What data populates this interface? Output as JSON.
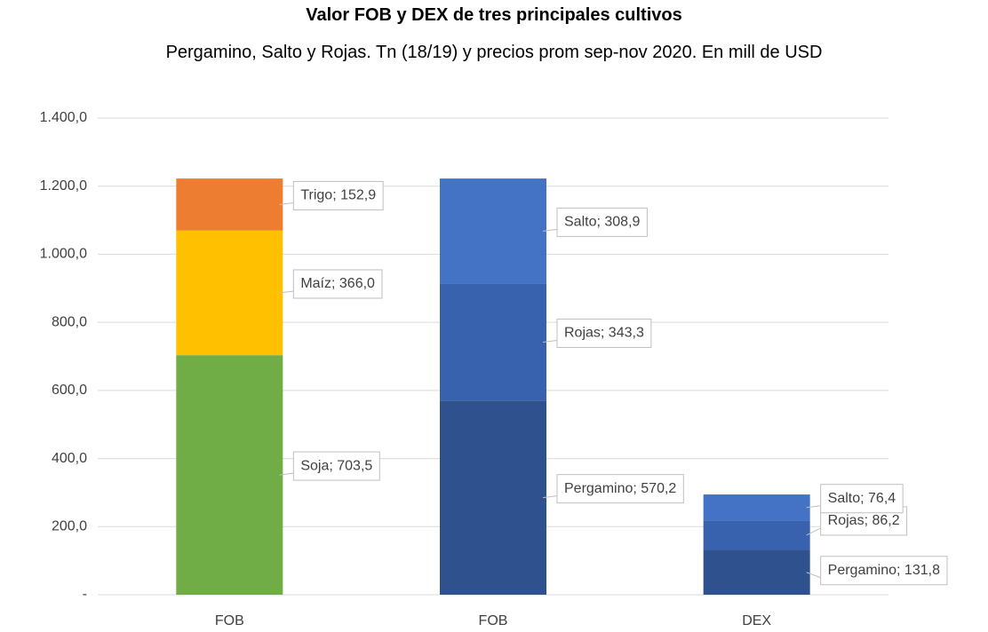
{
  "chart_data": {
    "type": "stacked_bar",
    "title": "Valor FOB y DEX de tres principales cultivos",
    "subtitle": "Pergamino, Salto y Rojas. Tn (18/19) y precios prom sep-nov 2020. En mill de USD",
    "categories": [
      "FOB",
      "FOB",
      "DEX"
    ],
    "series": [
      {
        "name": "Soja",
        "color": "#70ad47",
        "values": [
          703.5,
          null,
          null
        ],
        "value_labels": [
          "Soja;  703,5",
          null,
          null
        ]
      },
      {
        "name": "Maíz",
        "color": "#ffc000",
        "values": [
          366.0,
          null,
          null
        ],
        "value_labels": [
          "Maíz;  366,0",
          null,
          null
        ]
      },
      {
        "name": "Trigo",
        "color": "#ed7d31",
        "values": [
          152.9,
          null,
          null
        ],
        "value_labels": [
          "Trigo;  152,9",
          null,
          null
        ]
      },
      {
        "name": "Pergamino",
        "color": "#2f528f",
        "values": [
          null,
          570.2,
          131.8
        ],
        "value_labels": [
          null,
          "Pergamino;  570,2",
          "Pergamino;  131,8"
        ]
      },
      {
        "name": "Rojas",
        "color": "#3862ae",
        "values": [
          null,
          343.3,
          86.2
        ],
        "value_labels": [
          null,
          "Rojas;  343,3",
          "Rojas;  86,2"
        ]
      },
      {
        "name": "Salto",
        "color": "#4472c4",
        "values": [
          null,
          308.9,
          76.4
        ],
        "value_labels": [
          null,
          "Salto;  308,9",
          "Salto;  76,4"
        ]
      }
    ],
    "ylim": [
      0,
      1400
    ],
    "yticks": [
      {
        "value": 0,
        "label": "-"
      },
      {
        "value": 200,
        "label": "200,0"
      },
      {
        "value": 400,
        "label": "400,0"
      },
      {
        "value": 600,
        "label": "600,0"
      },
      {
        "value": 800,
        "label": "800,0"
      },
      {
        "value": 1000,
        "label": "1.000,0"
      },
      {
        "value": 1200,
        "label": "1.200,0"
      },
      {
        "value": 1400,
        "label": "1.400,0"
      }
    ],
    "grid": true
  }
}
